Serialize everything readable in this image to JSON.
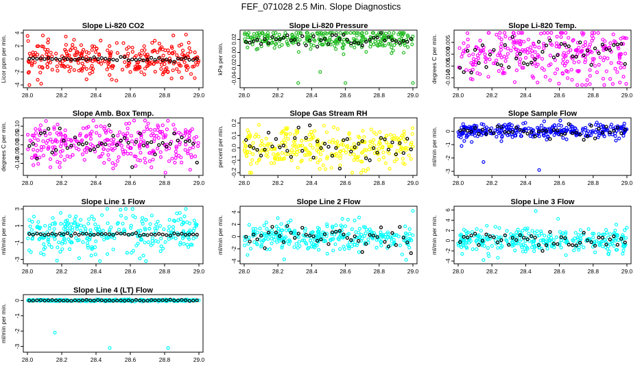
{
  "title": "FEF_071028  2.5 Min. Slope Diagnostics",
  "chart_data": [
    {
      "type": "scatter",
      "title": "Slope Li-820 CO2",
      "ylabel": "Licor ppm per min.",
      "color": "#ff0000",
      "xlim": [
        28.0,
        29.0
      ],
      "ylim": [
        -4,
        4
      ],
      "yticks": [
        "-4",
        "-2",
        "0",
        "2",
        "4"
      ],
      "xticks": [
        "28.0",
        "28.2",
        "28.4",
        "28.6",
        "28.8",
        "29.0"
      ],
      "series": [
        {
          "values_spread": 1.3,
          "outliers": [
            [
              28.09,
              3.6
            ],
            [
              28.08,
              -3.8
            ],
            [
              28.06,
              -3.2
            ]
          ]
        },
        {
          "color": "#000000",
          "spread": 0.15
        }
      ]
    },
    {
      "type": "scatter",
      "title": "Slope Li-820 Pressure",
      "ylabel": "kPa per min.",
      "color": "#22bb22",
      "xlim": [
        28.0,
        29.0
      ],
      "ylim": [
        -0.05,
        0.03
      ],
      "yticks": [
        "-0.04",
        "-0.02",
        "0.00",
        "0.02"
      ],
      "xticks": [
        "28.0",
        "28.2",
        "28.4",
        "28.6",
        "28.8",
        "29.0"
      ],
      "series": [
        {
          "center": 0.02,
          "spread": 0.008,
          "outliers": [
            [
              28.32,
              -0.047
            ],
            [
              28.6,
              -0.047
            ],
            [
              28.45,
              -0.03
            ],
            [
              29.0,
              -0.047
            ]
          ]
        },
        {
          "color": "#000000",
          "center": 0.02,
          "spread": 0.005
        }
      ]
    },
    {
      "type": "scatter",
      "title": "Slope Li-820 Temp.",
      "ylabel": "degrees C per min.",
      "color": "#ff00ff",
      "xlim": [
        28.0,
        29.0
      ],
      "ylim": [
        -0.013,
        0.009
      ],
      "yticks": [
        "-0.010",
        "-0.005",
        "0.000",
        "0.005"
      ],
      "xticks": [
        "28.0",
        "28.2",
        "28.4",
        "28.6",
        "28.8",
        "29.0"
      ],
      "series": [
        {
          "center": 0.0,
          "spread": 0.006
        },
        {
          "color": "#000000",
          "center": 0.0,
          "spread": 0.004
        }
      ]
    },
    {
      "type": "scatter",
      "title": "Slope Amb. Box Temp.",
      "ylabel": "degrees C per min.",
      "color": "#ff00ff",
      "xlim": [
        28.0,
        29.0
      ],
      "ylim": [
        -0.15,
        0.13
      ],
      "yticks": [
        "-0.10",
        "-0.05",
        "0.00",
        "0.05",
        "0.10"
      ],
      "xticks": [
        "28.0",
        "28.2",
        "28.4",
        "28.6",
        "28.8",
        "29.0"
      ],
      "series": [
        {
          "center": 0.0,
          "spread": 0.06
        },
        {
          "color": "#000000",
          "center": 0.0,
          "spread": 0.04
        }
      ]
    },
    {
      "type": "scatter",
      "title": "Slope Gas Stream RH",
      "ylabel": "percent per min.",
      "color": "#ffff00",
      "xlim": [
        28.0,
        29.0
      ],
      "ylim": [
        -0.2,
        0.22
      ],
      "yticks": [
        "-0.2",
        "-0.1",
        "0.0",
        "0.1",
        "0.2"
      ],
      "xticks": [
        "28.0",
        "28.2",
        "28.4",
        "28.6",
        "28.8",
        "29.0"
      ],
      "series": [
        {
          "center": 0.0,
          "spread": 0.08
        },
        {
          "color": "#000000",
          "center": 0.0,
          "spread": 0.07
        }
      ]
    },
    {
      "type": "scatter",
      "title": "Slope Sample Flow",
      "ylabel": "ml/min per min.",
      "color": "#0000ff",
      "xlim": [
        28.0,
        29.0
      ],
      "ylim": [
        -3.1,
        0.8
      ],
      "yticks": [
        "-3",
        "-2",
        "-1",
        "0"
      ],
      "xticks": [
        "28.0",
        "28.2",
        "28.4",
        "28.6",
        "28.8",
        "29.0"
      ],
      "series": [
        {
          "center": 0.0,
          "spread": 0.3,
          "outliers": [
            [
              28.15,
              -2.3
            ],
            [
              28.48,
              -2.9
            ],
            [
              28.02,
              -1.1
            ],
            [
              28.08,
              -0.8
            ]
          ]
        },
        {
          "color": "#000000",
          "center": 0.0,
          "spread": 0.25
        }
      ]
    },
    {
      "type": "scatter",
      "title": "Slope Line 1 Flow",
      "ylabel": "ml/min per min.",
      "color": "#00ffff",
      "xlim": [
        28.0,
        29.0
      ],
      "ylim": [
        -3.2,
        3.0
      ],
      "yticks": [
        "-3",
        "-1",
        "1",
        "3"
      ],
      "xticks": [
        "28.0",
        "28.2",
        "28.4",
        "28.6",
        "28.8",
        "29.0"
      ],
      "series": [
        {
          "center": 0.0,
          "spread": 1.2
        },
        {
          "color": "#000000",
          "center": 0.0,
          "spread": 0.1
        }
      ]
    },
    {
      "type": "scatter",
      "title": "Slope Line 2 Flow",
      "ylabel": "ml/min per min.",
      "color": "#00ffff",
      "xlim": [
        28.0,
        29.0
      ],
      "ylim": [
        -4,
        4.5
      ],
      "yticks": [
        "-4",
        "-2",
        "0",
        "2",
        "4"
      ],
      "xticks": [
        "28.0",
        "28.2",
        "28.4",
        "28.6",
        "28.8",
        "29.0"
      ],
      "series": [
        {
          "center": 0.0,
          "spread": 1.1,
          "outliers": [
            [
              28.96,
              -3.8
            ],
            [
              29.0,
              4.2
            ],
            [
              28.02,
              -3.0
            ]
          ]
        },
        {
          "color": "#000000",
          "center": 0.0,
          "spread": 0.9
        }
      ]
    },
    {
      "type": "scatter",
      "title": "Slope Line 3 Flow",
      "ylabel": "ml/min per min.",
      "color": "#00ffff",
      "xlim": [
        28.0,
        29.0
      ],
      "ylim": [
        -4,
        6.2
      ],
      "yticks": [
        "-4",
        "-2",
        "0",
        "2",
        "4",
        "6"
      ],
      "xticks": [
        "28.0",
        "28.2",
        "28.4",
        "28.6",
        "28.8",
        "29.0"
      ],
      "series": [
        {
          "center": 0.0,
          "spread": 1.2,
          "outliers": [
            [
              28.46,
              5.8
            ],
            [
              28.15,
              -3.8
            ]
          ]
        },
        {
          "color": "#000000",
          "center": 0.0,
          "spread": 1.0
        }
      ]
    },
    {
      "type": "scatter",
      "title": "Slope Line 4 (LT) Flow",
      "ylabel": "ml/min per min.",
      "color": "#00ffff",
      "xlim": [
        28.0,
        29.0
      ],
      "ylim": [
        -3.2,
        0.2
      ],
      "yticks": [
        "-3",
        "-2",
        "-1",
        "0"
      ],
      "xticks": [
        "28.0",
        "28.2",
        "28.4",
        "28.6",
        "28.8",
        "29.0"
      ],
      "series": [
        {
          "center": 0.0,
          "spread": 0.03,
          "outliers": [
            [
              28.16,
              -2.1
            ],
            [
              28.48,
              -3.1
            ],
            [
              28.82,
              -3.1
            ]
          ]
        },
        {
          "color": "#000000",
          "center": 0.0,
          "spread": 0.02
        }
      ]
    }
  ]
}
